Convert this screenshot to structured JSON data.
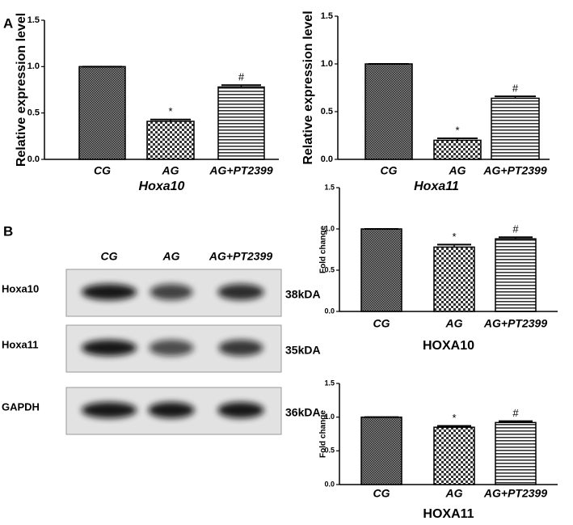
{
  "panel_labels": [
    "A",
    "B"
  ],
  "blot": {
    "columns": [
      "CG",
      "AG",
      "AG+PT2399"
    ],
    "rows": [
      {
        "label": "Hoxa10",
        "size": "38kDA"
      },
      {
        "label": "Hoxa11",
        "size": "35kDA"
      },
      {
        "label": "GAPDH",
        "size": "36kDA"
      }
    ]
  },
  "chart_data": [
    {
      "type": "bar",
      "y_label": "Relative expression level",
      "x_label": "Hoxa10",
      "categories": [
        "CG",
        "AG",
        "AG+PT2399"
      ],
      "values": [
        1.0,
        0.41,
        0.78
      ],
      "errors": [
        0,
        0.02,
        0.02
      ],
      "annotations": [
        null,
        "*",
        "#"
      ],
      "ylim": [
        0,
        1.5
      ],
      "yticks": [
        {
          "value": 0,
          "label": "0.0"
        },
        0.5,
        {
          "value": 1,
          "label": "1.0"
        },
        1.5
      ]
    },
    {
      "type": "bar",
      "y_label": "Relative expression level",
      "x_label": "Hoxa11",
      "categories": [
        "CG",
        "AG",
        "AG+PT2399"
      ],
      "values": [
        1.0,
        0.2,
        0.64
      ],
      "errors": [
        0,
        0.02,
        0.02
      ],
      "annotations": [
        null,
        "*",
        "#"
      ],
      "ylim": [
        0,
        1.5
      ],
      "yticks": [
        {
          "value": 0,
          "label": "0.0"
        },
        0.5,
        {
          "value": 1,
          "label": "1.0"
        },
        1.5
      ]
    },
    {
      "type": "bar",
      "y_label": "Fold change",
      "x_label": "HOXA10",
      "categories": [
        "CG",
        "AG",
        "AG+PT2399"
      ],
      "values": [
        1.0,
        0.78,
        0.88
      ],
      "errors": [
        0,
        0.03,
        0.02
      ],
      "annotations": [
        null,
        "*",
        "#"
      ],
      "ylim": [
        0,
        1.5
      ],
      "yticks": [
        {
          "value": 0,
          "label": "0.0"
        },
        0.5,
        {
          "value": 1,
          "label": "1.0"
        },
        1.5
      ]
    },
    {
      "type": "bar",
      "y_label": "Fold change",
      "x_label": "HOXA11",
      "categories": [
        "CG",
        "AG",
        "AG+PT2399"
      ],
      "values": [
        1.0,
        0.85,
        0.92
      ],
      "errors": [
        0,
        0.02,
        0.02
      ],
      "annotations": [
        null,
        "*",
        "#"
      ],
      "ylim": [
        0,
        1.5
      ],
      "yticks": [
        {
          "value": 0,
          "label": "0.0"
        },
        0.5,
        {
          "value": 1,
          "label": "1.0"
        },
        1.5
      ]
    }
  ]
}
